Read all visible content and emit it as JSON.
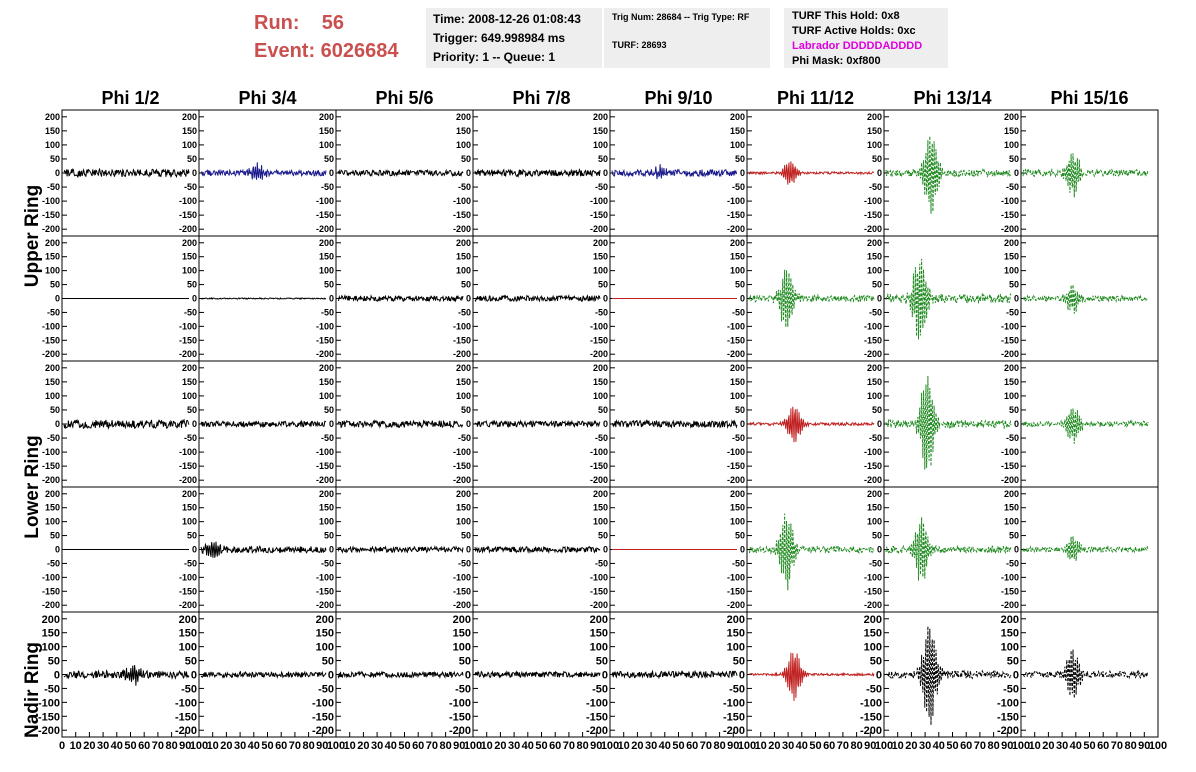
{
  "header": {
    "run_label": "Run:    56",
    "event_label": "Event: 6026684"
  },
  "time_box": {
    "time": "Time: 2008-12-26 01:08:43",
    "trigger": "Trigger: 649.998984 ms",
    "priority": "Priority: 1 -- Queue: 1"
  },
  "trig_box": {
    "trig": "Trig Num: 28684 -- Trig Type: RF",
    "turf": "TURF: 28693"
  },
  "turf_box": {
    "hold": "TURF This Hold: 0x8",
    "active": "TURF Active Holds: 0xc",
    "labrador": "Labrador DDDDDADDDD",
    "phimask": "Phi Mask: 0xf800"
  },
  "colors": {
    "header_red": "#c9504f",
    "labrador_magenta": "#e000e0",
    "black_trace": "#000000",
    "blue_trace": "#1a1a8c",
    "red_trace": "#c02020",
    "green_trace": "#1f8a1f"
  },
  "chart_data": {
    "type": "line",
    "columns": [
      "Phi 1/2",
      "Phi 3/4",
      "Phi 5/6",
      "Phi 7/8",
      "Phi 9/10",
      "Phi 11/12",
      "Phi 13/14",
      "Phi 15/16"
    ],
    "row_labels": [
      "Upper Ring",
      "Lower Ring",
      "Nadir Ring"
    ],
    "rows": 5,
    "ylim": [
      -210,
      210
    ],
    "yticks": [
      -200,
      -150,
      -100,
      -50,
      0,
      50,
      100,
      150,
      200
    ],
    "xlim": [
      0,
      100
    ],
    "xticks": [
      0,
      10,
      20,
      30,
      40,
      50,
      60,
      70,
      80,
      90,
      100
    ],
    "grid": false,
    "panels": [
      [
        {
          "color": "black",
          "amp": 14,
          "pulse": 0,
          "at": 0.5
        },
        {
          "color": "blue",
          "amp": 10,
          "pulse": 30,
          "at": 0.45
        },
        {
          "color": "black",
          "amp": 10,
          "pulse": 0,
          "at": 0.5
        },
        {
          "color": "black",
          "amp": 12,
          "pulse": 0,
          "at": 0.5
        },
        {
          "color": "blue",
          "amp": 12,
          "pulse": 20,
          "at": 0.38
        },
        {
          "color": "red",
          "amp": 4,
          "pulse": 45,
          "at": 0.33
        },
        {
          "color": "green",
          "amp": 12,
          "pulse": 150,
          "at": 0.36,
          "dash": true
        },
        {
          "color": "green",
          "amp": 12,
          "pulse": 85,
          "at": 0.4,
          "dash": true
        }
      ],
      [
        {
          "color": "black",
          "amp": 0,
          "pulse": 0,
          "at": 0.5
        },
        {
          "color": "black",
          "amp": 2,
          "pulse": 0,
          "at": 0.5
        },
        {
          "color": "black",
          "amp": 10,
          "pulse": 0,
          "at": 0.5
        },
        {
          "color": "black",
          "amp": 10,
          "pulse": 0,
          "at": 0.5
        },
        {
          "color": "red",
          "amp": 0,
          "pulse": 0,
          "at": 0.5
        },
        {
          "color": "green",
          "amp": 12,
          "pulse": 115,
          "at": 0.3,
          "dash": true
        },
        {
          "color": "green",
          "amp": 16,
          "pulse": 160,
          "at": 0.27,
          "dash": true
        },
        {
          "color": "green",
          "amp": 10,
          "pulse": 50,
          "at": 0.4,
          "dash": true
        }
      ],
      [
        {
          "color": "black",
          "amp": 15,
          "pulse": 0,
          "at": 0.5
        },
        {
          "color": "black",
          "amp": 10,
          "pulse": 0,
          "at": 0.5
        },
        {
          "color": "black",
          "amp": 12,
          "pulse": 0,
          "at": 0.5
        },
        {
          "color": "black",
          "amp": 10,
          "pulse": 0,
          "at": 0.5
        },
        {
          "color": "black",
          "amp": 12,
          "pulse": 0,
          "at": 0.5
        },
        {
          "color": "red",
          "amp": 5,
          "pulse": 70,
          "at": 0.36
        },
        {
          "color": "green",
          "amp": 14,
          "pulse": 180,
          "at": 0.33,
          "dash": true
        },
        {
          "color": "green",
          "amp": 10,
          "pulse": 65,
          "at": 0.4,
          "dash": true
        }
      ],
      [
        {
          "color": "black",
          "amp": 0,
          "pulse": 0,
          "at": 0.5
        },
        {
          "color": "black",
          "amp": 12,
          "pulse": 30,
          "at": 0.1
        },
        {
          "color": "black",
          "amp": 10,
          "pulse": 0,
          "at": 0.5
        },
        {
          "color": "black",
          "amp": 10,
          "pulse": 0,
          "at": 0.5
        },
        {
          "color": "red",
          "amp": 0,
          "pulse": 0,
          "at": 0.5
        },
        {
          "color": "green",
          "amp": 12,
          "pulse": 140,
          "at": 0.3,
          "dash": true
        },
        {
          "color": "green",
          "amp": 12,
          "pulse": 120,
          "at": 0.28,
          "dash": true
        },
        {
          "color": "green",
          "amp": 10,
          "pulse": 45,
          "at": 0.4,
          "dash": true
        }
      ],
      [
        {
          "color": "black",
          "amp": 14,
          "pulse": 35,
          "at": 0.55
        },
        {
          "color": "black",
          "amp": 10,
          "pulse": 0,
          "at": 0.5
        },
        {
          "color": "black",
          "amp": 10,
          "pulse": 0,
          "at": 0.5
        },
        {
          "color": "black",
          "amp": 10,
          "pulse": 0,
          "at": 0.5
        },
        {
          "color": "black",
          "amp": 12,
          "pulse": 0,
          "at": 0.5
        },
        {
          "color": "red",
          "amp": 4,
          "pulse": 95,
          "at": 0.36
        },
        {
          "color": "black",
          "amp": 14,
          "pulse": 190,
          "at": 0.35,
          "dash": true
        },
        {
          "color": "black",
          "amp": 12,
          "pulse": 100,
          "at": 0.4,
          "dash": true
        }
      ]
    ]
  }
}
